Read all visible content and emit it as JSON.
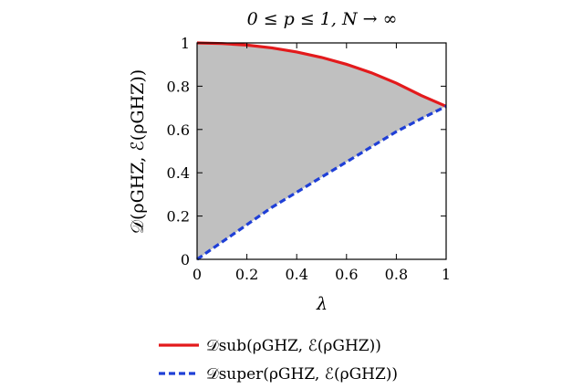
{
  "chart_data": {
    "type": "area",
    "title": "0 ≤ p ≤ 1,  N → ∞",
    "xlabel": "λ",
    "ylabel": "𝒟(ρGHZ, ℰ(ρGHZ))",
    "xlim": [
      0,
      1
    ],
    "ylim": [
      0,
      1
    ],
    "xticks": [
      "0",
      "0.2",
      "0.4",
      "0.6",
      "0.8",
      "1"
    ],
    "yticks": [
      "0",
      "0.2",
      "0.4",
      "0.6",
      "0.8",
      "1"
    ],
    "x": [
      0,
      0.1,
      0.2,
      0.3,
      0.4,
      0.5,
      0.6,
      0.7,
      0.8,
      0.9,
      1.0
    ],
    "series": [
      {
        "name": "𝒟sub(ρGHZ, ℰ(ρGHZ))",
        "color": "#e31a1c",
        "style": "solid",
        "values": [
          1.0,
          0.997,
          0.99,
          0.977,
          0.958,
          0.933,
          0.901,
          0.862,
          0.814,
          0.757,
          0.707
        ]
      },
      {
        "name": "𝒟super(ρGHZ, ℰ(ρGHZ))",
        "color": "#1f3fd6",
        "style": "dashed",
        "values": [
          0.0,
          0.08,
          0.16,
          0.24,
          0.31,
          0.38,
          0.45,
          0.52,
          0.59,
          0.65,
          0.707
        ]
      }
    ],
    "fill_between": {
      "color": "#c0c0c0"
    },
    "grid": false,
    "legend_position": "below"
  }
}
